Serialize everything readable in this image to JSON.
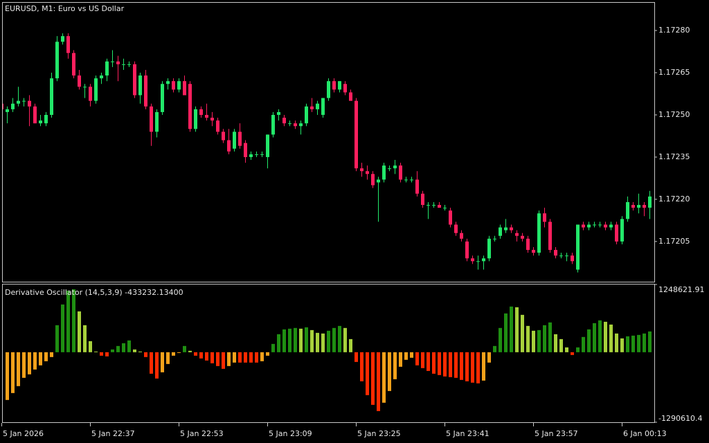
{
  "chart_data": [
    {
      "type": "candlestick",
      "title": "EURUSD, M1:  Euro vs US Dollar",
      "categories": [
        "5 Jan 2026",
        null,
        null,
        null,
        null,
        null,
        null,
        null,
        null,
        null,
        null,
        null,
        null,
        null,
        null,
        null,
        "5 Jan 22:37",
        null,
        null,
        null,
        null,
        null,
        null,
        null,
        null,
        null,
        null,
        null,
        null,
        null,
        null,
        null,
        "5 Jan 22:53",
        null,
        null,
        null,
        null,
        null,
        null,
        null,
        null,
        null,
        null,
        null,
        null,
        null,
        null,
        null,
        "5 Jan 23:09",
        null,
        null,
        null,
        null,
        null,
        null,
        null,
        null,
        null,
        null,
        null,
        null,
        null,
        null,
        null,
        "5 Jan 23:25",
        null,
        null,
        null,
        null,
        null,
        null,
        null,
        null,
        null,
        null,
        null,
        null,
        null,
        null,
        null,
        "5 Jan 23:41",
        null,
        null,
        null,
        null,
        null,
        null,
        null,
        null,
        null,
        null,
        null,
        null,
        null,
        null,
        null,
        "5 Jan 23:57",
        null,
        null,
        null,
        null,
        null,
        null,
        null,
        null,
        null,
        null,
        null,
        null,
        null,
        null,
        null,
        "6 Jan 00:13",
        null,
        null,
        null,
        null,
        null
      ],
      "open": [
        1.17254,
        1.17251,
        1.17252,
        1.17254,
        1.17255,
        1.17255,
        1.17253,
        1.17247,
        1.17247,
        1.1725,
        1.17263,
        1.17276,
        1.17278,
        1.17272,
        1.17264,
        1.1726,
        1.1726,
        1.17255,
        1.17263,
        1.17264,
        1.17269,
        1.17269,
        1.17268,
        1.17268,
        1.17268,
        1.17257,
        1.17264,
        1.17253,
        1.17244,
        1.17251,
        1.17261,
        1.17262,
        1.17259,
        1.17262,
        1.17261,
        1.17245,
        1.17252,
        1.1725,
        1.17249,
        1.17248,
        1.17244,
        1.17241,
        1.17238,
        1.17244,
        1.1724,
        1.17235,
        1.17236,
        1.17236,
        1.17235,
        1.17243,
        1.1725,
        1.17249,
        1.17247,
        1.17247,
        1.17246,
        1.17247,
        1.17253,
        1.17252,
        1.1725,
        1.17256,
        1.17262,
        1.17259,
        1.17261,
        1.17258,
        1.17255,
        1.17231,
        1.1723,
        1.17229,
        1.17226,
        1.17227,
        1.17231,
        1.17231,
        1.17232,
        1.17227,
        1.17227,
        1.17227,
        1.17222,
        1.17218,
        1.17218,
        1.17218,
        1.17217,
        1.17216,
        1.17211,
        1.17208,
        1.17205,
        1.17199,
        1.17198,
        1.17198,
        1.17199,
        1.17206,
        1.17207,
        1.17209,
        1.1721,
        1.17208,
        1.17207,
        1.17206,
        1.17202,
        1.17201,
        1.17215,
        1.17212,
        1.17202,
        1.172,
        1.172,
        1.172,
        1.17195,
        1.17211,
        1.1721,
        1.17211,
        1.17211,
        1.17211,
        1.1721,
        1.17211,
        1.17205,
        1.17213,
        1.17218,
        1.17217,
        1.17218,
        1.17217
      ],
      "high": [
        1.17256,
        1.17253,
        1.17256,
        1.1726,
        1.17256,
        1.17257,
        1.17254,
        1.1725,
        1.17251,
        1.17265,
        1.17278,
        1.17279,
        1.17279,
        1.17273,
        1.17266,
        1.17261,
        1.17261,
        1.17264,
        1.17265,
        1.1727,
        1.17273,
        1.17271,
        1.1727,
        1.17269,
        1.17269,
        1.17265,
        1.17266,
        1.17254,
        1.17252,
        1.17262,
        1.17263,
        1.17263,
        1.17263,
        1.17264,
        1.17262,
        1.17253,
        1.17253,
        1.17254,
        1.17251,
        1.17249,
        1.17245,
        1.17245,
        1.17245,
        1.17247,
        1.17241,
        1.17237,
        1.17237,
        1.17237,
        1.17243,
        1.17251,
        1.17252,
        1.1725,
        1.17248,
        1.17248,
        1.17248,
        1.17254,
        1.17256,
        1.17255,
        1.17256,
        1.17263,
        1.17263,
        1.17262,
        1.17262,
        1.17259,
        1.17256,
        1.17233,
        1.17232,
        1.1723,
        1.17228,
        1.17233,
        1.17232,
        1.17234,
        1.17233,
        1.17228,
        1.17228,
        1.1723,
        1.17223,
        1.17219,
        1.17219,
        1.17219,
        1.17218,
        1.17217,
        1.17212,
        1.17209,
        1.17206,
        1.172,
        1.172,
        1.172,
        1.17207,
        1.17207,
        1.17211,
        1.17213,
        1.17211,
        1.17209,
        1.17208,
        1.17207,
        1.17203,
        1.17216,
        1.17217,
        1.17213,
        1.17203,
        1.17201,
        1.17201,
        1.17201,
        1.17211,
        1.17212,
        1.17212,
        1.17212,
        1.17212,
        1.17212,
        1.17212,
        1.17212,
        1.17214,
        1.17221,
        1.17219,
        1.17222,
        1.17219,
        1.17223
      ],
      "low": [
        1.17251,
        1.17247,
        1.17251,
        1.17253,
        1.17253,
        1.17246,
        1.17247,
        1.17246,
        1.17246,
        1.17249,
        1.17262,
        1.17275,
        1.1727,
        1.17263,
        1.17259,
        1.17256,
        1.17253,
        1.17254,
        1.17261,
        1.17262,
        1.17267,
        1.17262,
        1.17266,
        1.17267,
        1.17256,
        1.17254,
        1.17252,
        1.17239,
        1.17242,
        1.1725,
        1.17259,
        1.17258,
        1.17258,
        1.17257,
        1.17244,
        1.17244,
        1.17249,
        1.17248,
        1.17246,
        1.17243,
        1.1724,
        1.17236,
        1.17237,
        1.17238,
        1.17233,
        1.17234,
        1.17235,
        1.17235,
        1.17231,
        1.17242,
        1.17248,
        1.17246,
        1.17246,
        1.17245,
        1.17243,
        1.17246,
        1.17251,
        1.1725,
        1.17249,
        1.17255,
        1.17258,
        1.17258,
        1.17257,
        1.17255,
        1.1723,
        1.17228,
        1.17227,
        1.17224,
        1.17212,
        1.17226,
        1.1723,
        1.17229,
        1.17226,
        1.17226,
        1.17226,
        1.17221,
        1.17217,
        1.17213,
        1.17217,
        1.17217,
        1.17216,
        1.1721,
        1.17207,
        1.17205,
        1.17198,
        1.17197,
        1.17195,
        1.17195,
        1.17198,
        1.17205,
        1.17206,
        1.17208,
        1.17208,
        1.17205,
        1.17205,
        1.17201,
        1.172,
        1.172,
        1.1721,
        1.17201,
        1.17199,
        1.17199,
        1.17198,
        1.17197,
        1.17194,
        1.17209,
        1.17209,
        1.1721,
        1.1721,
        1.17209,
        1.17209,
        1.17204,
        1.17204,
        1.17212,
        1.17216,
        1.17215,
        1.17214,
        1.17213
      ],
      "close": [
        1.17252,
        1.17252,
        1.17254,
        1.17255,
        1.17255,
        1.17253,
        1.17247,
        1.17248,
        1.1725,
        1.17263,
        1.17276,
        1.17278,
        1.17272,
        1.17264,
        1.1726,
        1.1726,
        1.17255,
        1.17263,
        1.17264,
        1.17269,
        1.17269,
        1.17268,
        1.17268,
        1.17268,
        1.17257,
        1.17264,
        1.17253,
        1.17244,
        1.17251,
        1.17261,
        1.17262,
        1.17259,
        1.17262,
        1.17257,
        1.17245,
        1.17252,
        1.1725,
        1.17249,
        1.17248,
        1.17244,
        1.17241,
        1.17237,
        1.17244,
        1.17239,
        1.17235,
        1.17236,
        1.17236,
        1.17236,
        1.17243,
        1.1725,
        1.17251,
        1.17247,
        1.17247,
        1.17246,
        1.17247,
        1.17253,
        1.17252,
        1.17254,
        1.17256,
        1.17262,
        1.17259,
        1.17262,
        1.17258,
        1.17255,
        1.17231,
        1.1723,
        1.17229,
        1.17225,
        1.17227,
        1.17232,
        1.17231,
        1.17232,
        1.17227,
        1.17227,
        1.17227,
        1.17222,
        1.17218,
        1.17218,
        1.17218,
        1.17217,
        1.17217,
        1.17211,
        1.17208,
        1.17206,
        1.17199,
        1.17198,
        1.17198,
        1.17199,
        1.17206,
        1.17206,
        1.1721,
        1.1721,
        1.17209,
        1.17207,
        1.17206,
        1.17202,
        1.17201,
        1.17215,
        1.17212,
        1.17202,
        1.172,
        1.172,
        1.172,
        1.17198,
        1.17211,
        1.1721,
        1.17211,
        1.17211,
        1.17211,
        1.1721,
        1.17211,
        1.17205,
        1.17213,
        1.17219,
        1.17217,
        1.17218,
        1.17217,
        1.17221
      ],
      "up_color": "#22e86a",
      "down_color": "#ff1f5e",
      "ylim": [
        1.171907,
        1.172901
      ],
      "yticks": [
        {
          "value": 1.1728,
          "label": "1.17280"
        },
        {
          "value": 1.17265,
          "label": "1.17265"
        },
        {
          "value": 1.1725,
          "label": "1.17250"
        },
        {
          "value": 1.17235,
          "label": "1.17235"
        },
        {
          "value": 1.1722,
          "label": "1.17220"
        },
        {
          "value": 1.17205,
          "label": "1.17205"
        }
      ]
    },
    {
      "type": "bar",
      "title": "Derivative Oscillator (14,5,3,9) -433232.13400",
      "values": [
        null,
        -880000,
        -753000,
        -625000,
        -472000,
        -408000,
        -319000,
        -242000,
        -166000,
        -89000,
        498000,
        880000,
        1136000,
        1161000,
        753000,
        498000,
        204000,
        13000,
        -64000,
        -77000,
        51000,
        115000,
        166000,
        217000,
        51000,
        13000,
        -89000,
        -396000,
        -485000,
        -370000,
        -217000,
        -64000,
        -13000,
        115000,
        26000,
        -64000,
        -115000,
        -153000,
        -204000,
        -255000,
        -306000,
        -255000,
        -191000,
        -191000,
        -191000,
        -191000,
        -191000,
        -166000,
        -64000,
        153000,
        332000,
        421000,
        434000,
        447000,
        434000,
        459000,
        408000,
        357000,
        345000,
        396000,
        447000,
        485000,
        447000,
        242000,
        -179000,
        -536000,
        -791000,
        -970000,
        -1085000,
        -931000,
        -715000,
        -498000,
        -268000,
        -140000,
        -102000,
        -242000,
        -293000,
        -345000,
        -396000,
        -421000,
        -447000,
        -459000,
        -472000,
        -510000,
        -536000,
        -561000,
        -574000,
        -523000,
        -191000,
        115000,
        447000,
        715000,
        842000,
        829000,
        689000,
        485000,
        396000,
        408000,
        498000,
        549000,
        332000,
        242000,
        89000,
        -51000,
        89000,
        281000,
        421000,
        536000,
        587000,
        561000,
        510000,
        345000,
        255000,
        293000,
        306000,
        319000,
        345000,
        383000
      ],
      "colors": [
        "#1f8f12",
        "#a8d13c",
        "#ff2a00",
        "#f5a21b"
      ],
      "ylim": [
        -1290610.4,
        1248621.91
      ],
      "yticks": [
        1248621.91,
        -1290610.4
      ]
    }
  ]
}
